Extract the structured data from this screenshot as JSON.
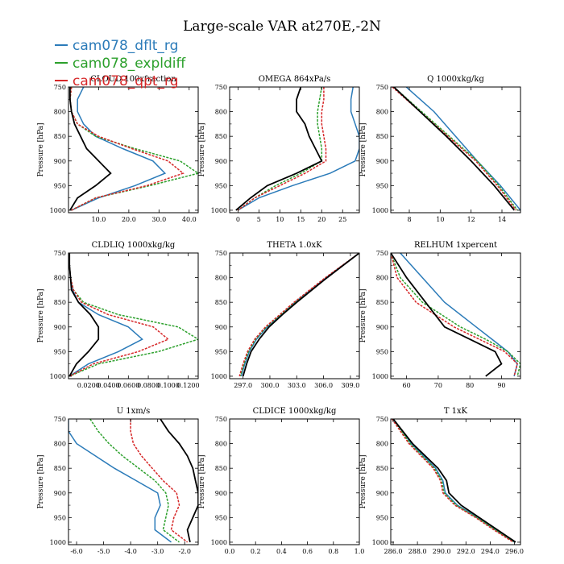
{
  "figure": {
    "title": "Large-scale VAR at270E,-2N"
  },
  "legend": [
    {
      "name": "cam078_dflt_rg",
      "color": "#2b7bb9"
    },
    {
      "name": "cam078_expldiff",
      "color": "#2ca02c"
    },
    {
      "name": "cam078_qpt_rg",
      "color": "#d62728"
    }
  ],
  "reference_color": "#000000",
  "chart_data": [
    {
      "type": "line",
      "title": "CLOUD 100xfraction",
      "ylabel": "Pressure [hPa]",
      "xlim": [
        0,
        43
      ],
      "ylim": [
        1005,
        750
      ],
      "xticks": [
        10,
        20,
        30,
        40
      ],
      "xticklabels": [
        "10.0",
        "20.0",
        "30.0",
        "40.0"
      ],
      "yticks": [
        750,
        800,
        850,
        900,
        950,
        1000
      ],
      "yticklabels": [
        "750",
        "800",
        "850",
        "900",
        "950",
        "1000"
      ],
      "p": [
        750,
        775,
        800,
        825,
        850,
        875,
        900,
        925,
        950,
        975,
        1000
      ],
      "series": [
        {
          "x": [
            5,
            3,
            3,
            5,
            9,
            18,
            28,
            32,
            22,
            10,
            1
          ],
          "color": "#2b7bb9",
          "dash": false
        },
        {
          "x": [
            1,
            0.5,
            1,
            3,
            9,
            22,
            37,
            43,
            27,
            9,
            1
          ],
          "color": "#2ca02c",
          "dash": true
        },
        {
          "x": [
            1,
            0.5,
            1,
            3,
            10,
            21,
            33,
            38,
            26,
            9,
            1
          ],
          "color": "#d62728",
          "dash": true
        },
        {
          "x": [
            0.5,
            0.5,
            1,
            2,
            4,
            6,
            10,
            14,
            9,
            3,
            0.5
          ],
          "color": "#000000",
          "dash": false
        }
      ]
    },
    {
      "type": "line",
      "title": "OMEGA 864xPa/s",
      "ylabel": "Pressure [hPa]",
      "xlim": [
        -2,
        29
      ],
      "ylim": [
        1005,
        750
      ],
      "xticks": [
        0,
        5,
        10,
        15,
        20,
        25
      ],
      "xticklabels": [
        "0",
        "5",
        "10",
        "15",
        "20",
        "25"
      ],
      "yticks": [
        750,
        800,
        850,
        900,
        950,
        1000
      ],
      "yticklabels": [
        "750",
        "800",
        "850",
        "900",
        "950",
        "1000"
      ],
      "p": [
        750,
        775,
        800,
        825,
        850,
        875,
        900,
        925,
        950,
        975,
        1000
      ],
      "series": [
        {
          "x": [
            27.5,
            27,
            27,
            28,
            29,
            29,
            28,
            22,
            13,
            5,
            0
          ],
          "color": "#2b7bb9",
          "dash": false
        },
        {
          "x": [
            20,
            19.5,
            19,
            19,
            19.5,
            20,
            20,
            15,
            9,
            4,
            0
          ],
          "color": "#2ca02c",
          "dash": true
        },
        {
          "x": [
            20.5,
            20.5,
            20,
            20,
            20.5,
            21,
            21,
            16,
            10,
            4,
            0
          ],
          "color": "#d62728",
          "dash": true
        },
        {
          "x": [
            15,
            14,
            14,
            16,
            17,
            18.5,
            20,
            14,
            7,
            3,
            -0.5
          ],
          "color": "#000000",
          "dash": false
        }
      ]
    },
    {
      "type": "line",
      "title": "Q 1000xkg/kg",
      "ylabel": "Pressure [hPa]",
      "xlim": [
        6.8,
        15.2
      ],
      "ylim": [
        1005,
        750
      ],
      "xticks": [
        8,
        10,
        12,
        14
      ],
      "xticklabels": [
        "8",
        "10",
        "12",
        "14"
      ],
      "yticks": [
        750,
        800,
        850,
        900,
        950,
        1000
      ],
      "yticklabels": [
        "750",
        "800",
        "850",
        "900",
        "950",
        "1000"
      ],
      "p": [
        750,
        800,
        850,
        900,
        950,
        1000
      ],
      "series": [
        {
          "x": [
            7.8,
            9.6,
            11,
            12.4,
            13.9,
            15.2
          ],
          "color": "#2b7bb9",
          "dash": false
        },
        {
          "x": [
            7,
            8.8,
            10.6,
            12.4,
            13.8,
            15
          ],
          "color": "#2ca02c",
          "dash": true
        },
        {
          "x": [
            6.9,
            8.7,
            10.5,
            12.3,
            13.7,
            14.9
          ],
          "color": "#d62728",
          "dash": true
        },
        {
          "x": [
            7,
            8.7,
            10.4,
            12,
            13.5,
            14.8
          ],
          "color": "#000000",
          "dash": false
        }
      ]
    },
    {
      "type": "line",
      "title": "CLDLIQ 1000xkg/kg",
      "ylabel": "Pressure [hPa]",
      "xlim": [
        0,
        0.13
      ],
      "ylim": [
        1005,
        750
      ],
      "xticks": [
        0.02,
        0.04,
        0.06,
        0.08,
        0.1,
        0.12
      ],
      "xticklabels": [
        "0.0200",
        "0.0400",
        "0.0600",
        "0.0800",
        "0.1000",
        "0.1200"
      ],
      "yticks": [
        750,
        800,
        850,
        900,
        950,
        1000
      ],
      "yticklabels": [
        "750",
        "800",
        "850",
        "900",
        "950",
        "1000"
      ],
      "p": [
        750,
        775,
        800,
        825,
        850,
        875,
        900,
        925,
        950,
        975,
        1000
      ],
      "series": [
        {
          "x": [
            0.001,
            0.001,
            0.002,
            0.004,
            0.01,
            0.03,
            0.06,
            0.074,
            0.05,
            0.02,
            0.001
          ],
          "color": "#2b7bb9",
          "dash": false
        },
        {
          "x": [
            0.001,
            0.001,
            0.002,
            0.005,
            0.015,
            0.05,
            0.11,
            0.13,
            0.09,
            0.03,
            0.001
          ],
          "color": "#2ca02c",
          "dash": true
        },
        {
          "x": [
            0.001,
            0.001,
            0.002,
            0.005,
            0.013,
            0.04,
            0.085,
            0.1,
            0.07,
            0.025,
            0.001
          ],
          "color": "#d62728",
          "dash": true
        },
        {
          "x": [
            0.001,
            0.001,
            0.002,
            0.003,
            0.01,
            0.022,
            0.03,
            0.03,
            0.02,
            0.008,
            0.001
          ],
          "color": "#000000",
          "dash": false
        }
      ]
    },
    {
      "type": "line",
      "title": "THETA 1.0xK",
      "ylabel": "",
      "xlim": [
        295.5,
        310
      ],
      "ylim": [
        1005,
        750
      ],
      "xticks": [
        297,
        300,
        303,
        306,
        309
      ],
      "xticklabels": [
        "297.0",
        "300.0",
        "303.0",
        "306.0",
        "309.0"
      ],
      "yticks": [
        750,
        800,
        850,
        900,
        950,
        1000
      ],
      "yticklabels": [
        "750",
        "800",
        "850",
        "900",
        "950",
        "1000"
      ],
      "p": [
        750,
        800,
        850,
        875,
        900,
        925,
        950,
        975,
        1000
      ],
      "series": [
        {
          "x": [
            310,
            306.3,
            302.8,
            301.3,
            299.7,
            298.5,
            297.7,
            297.2,
            296.8
          ],
          "color": "#2b7bb9",
          "dash": false
        },
        {
          "x": [
            310,
            306.3,
            302.8,
            301.2,
            299.6,
            298.4,
            297.6,
            297.1,
            296.7
          ],
          "color": "#2ca02c",
          "dash": true
        },
        {
          "x": [
            310,
            306.2,
            302.7,
            301.1,
            299.5,
            298.3,
            297.5,
            297,
            296.6
          ],
          "color": "#d62728",
          "dash": true
        },
        {
          "x": [
            310,
            306.4,
            303,
            301.4,
            299.9,
            298.8,
            297.9,
            297.4,
            297
          ],
          "color": "#000000",
          "dash": false
        }
      ]
    },
    {
      "type": "line",
      "title": "RELHUM 1xpercent",
      "ylabel": "Pressure [hPa]",
      "xlim": [
        55,
        96
      ],
      "ylim": [
        1005,
        750
      ],
      "xticks": [
        60,
        70,
        80,
        90
      ],
      "xticklabels": [
        "60",
        "70",
        "80",
        "90"
      ],
      "yticks": [
        750,
        800,
        850,
        900,
        950,
        1000
      ],
      "yticklabels": [
        "750",
        "800",
        "850",
        "900",
        "950",
        "1000"
      ],
      "p": [
        750,
        800,
        850,
        900,
        925,
        950,
        975,
        1000
      ],
      "series": [
        {
          "x": [
            58,
            65,
            72,
            82,
            87,
            92,
            95,
            94
          ],
          "color": "#2b7bb9",
          "dash": false
        },
        {
          "x": [
            55,
            58,
            65,
            77,
            85,
            92,
            96,
            95
          ],
          "color": "#2ca02c",
          "dash": true
        },
        {
          "x": [
            55,
            57,
            63,
            75,
            83,
            91,
            95,
            94
          ],
          "color": "#d62728",
          "dash": true
        },
        {
          "x": [
            55,
            60,
            66,
            72,
            80,
            88,
            90,
            85
          ],
          "color": "#000000",
          "dash": false
        }
      ]
    },
    {
      "type": "line",
      "title": "U 1xm/s",
      "ylabel": "Pressure [hPa]",
      "xlim": [
        -6.3,
        -1.5
      ],
      "ylim": [
        1005,
        750
      ],
      "xticks": [
        -6,
        -5,
        -4,
        -3,
        -2
      ],
      "xticklabels": [
        "-6.0",
        "-5.0",
        "-4.0",
        "-3.0",
        "-2.0"
      ],
      "yticks": [
        750,
        800,
        850,
        900,
        950,
        1000
      ],
      "yticklabels": [
        "750",
        "800",
        "850",
        "900",
        "950",
        "1000"
      ],
      "p": [
        750,
        775,
        800,
        825,
        850,
        875,
        900,
        925,
        950,
        975,
        1000
      ],
      "series": [
        {
          "x": [
            -6.3,
            -6.3,
            -6,
            -5.3,
            -4.6,
            -3.8,
            -3,
            -2.9,
            -3.1,
            -3.1,
            -2.5
          ],
          "color": "#2b7bb9",
          "dash": false
        },
        {
          "x": [
            -5.5,
            -5.2,
            -4.8,
            -4.3,
            -3.7,
            -3.1,
            -2.7,
            -2.6,
            -2.7,
            -2.8,
            -2.2
          ],
          "color": "#2ca02c",
          "dash": true
        },
        {
          "x": [
            -4,
            -4,
            -3.9,
            -3.6,
            -3.2,
            -2.8,
            -2.3,
            -2.2,
            -2.4,
            -2.5,
            -1.9
          ],
          "color": "#d62728",
          "dash": true
        },
        {
          "x": [
            -2.9,
            -2.6,
            -2.2,
            -1.9,
            -1.7,
            -1.6,
            -1.5,
            -1.5,
            -1.7,
            -1.9,
            -1.8
          ],
          "color": "#000000",
          "dash": false
        }
      ]
    },
    {
      "type": "line",
      "title": "CLDICE 1000xkg/kg",
      "ylabel": "Pressure [hPa]",
      "xlim": [
        0,
        1
      ],
      "ylim": [
        1005,
        750
      ],
      "xticks": [
        0,
        0.2,
        0.4,
        0.6,
        0.8,
        1.0
      ],
      "xticklabels": [
        "0.0",
        "0.2",
        "0.4",
        "0.6",
        "0.8",
        "1.0"
      ],
      "yticks": [
        750,
        800,
        850,
        900,
        950,
        1000
      ],
      "yticklabels": [
        "750",
        "800",
        "850",
        "900",
        "950",
        "1000"
      ],
      "p": [],
      "series": []
    },
    {
      "type": "line",
      "title": "T 1xK",
      "ylabel": "Pressure [hPa]",
      "xlim": [
        285.8,
        296.5
      ],
      "ylim": [
        1005,
        750
      ],
      "xticks": [
        286,
        288,
        290,
        292,
        294,
        296
      ],
      "xticklabels": [
        "286.0",
        "288.0",
        "290.0",
        "292.0",
        "294.0",
        "296.0"
      ],
      "yticks": [
        750,
        800,
        850,
        900,
        950,
        1000
      ],
      "yticklabels": [
        "750",
        "800",
        "850",
        "900",
        "950",
        "1000"
      ],
      "p": [
        750,
        800,
        850,
        875,
        900,
        925,
        950,
        975,
        1000
      ],
      "series": [
        {
          "x": [
            286,
            287.5,
            289.5,
            290.1,
            290.3,
            291.3,
            293,
            294.5,
            296
          ],
          "color": "#2b7bb9",
          "dash": false
        },
        {
          "x": [
            286,
            287.4,
            289.4,
            290,
            290.2,
            291.2,
            292.9,
            294.4,
            296
          ],
          "color": "#2ca02c",
          "dash": true
        },
        {
          "x": [
            285.9,
            287.3,
            289.3,
            289.9,
            290.1,
            291.1,
            292.8,
            294.3,
            295.9
          ],
          "color": "#d62728",
          "dash": true
        },
        {
          "x": [
            286,
            287.6,
            289.7,
            290.4,
            290.6,
            291.6,
            293.1,
            294.6,
            296.1
          ],
          "color": "#000000",
          "dash": false
        }
      ]
    }
  ]
}
